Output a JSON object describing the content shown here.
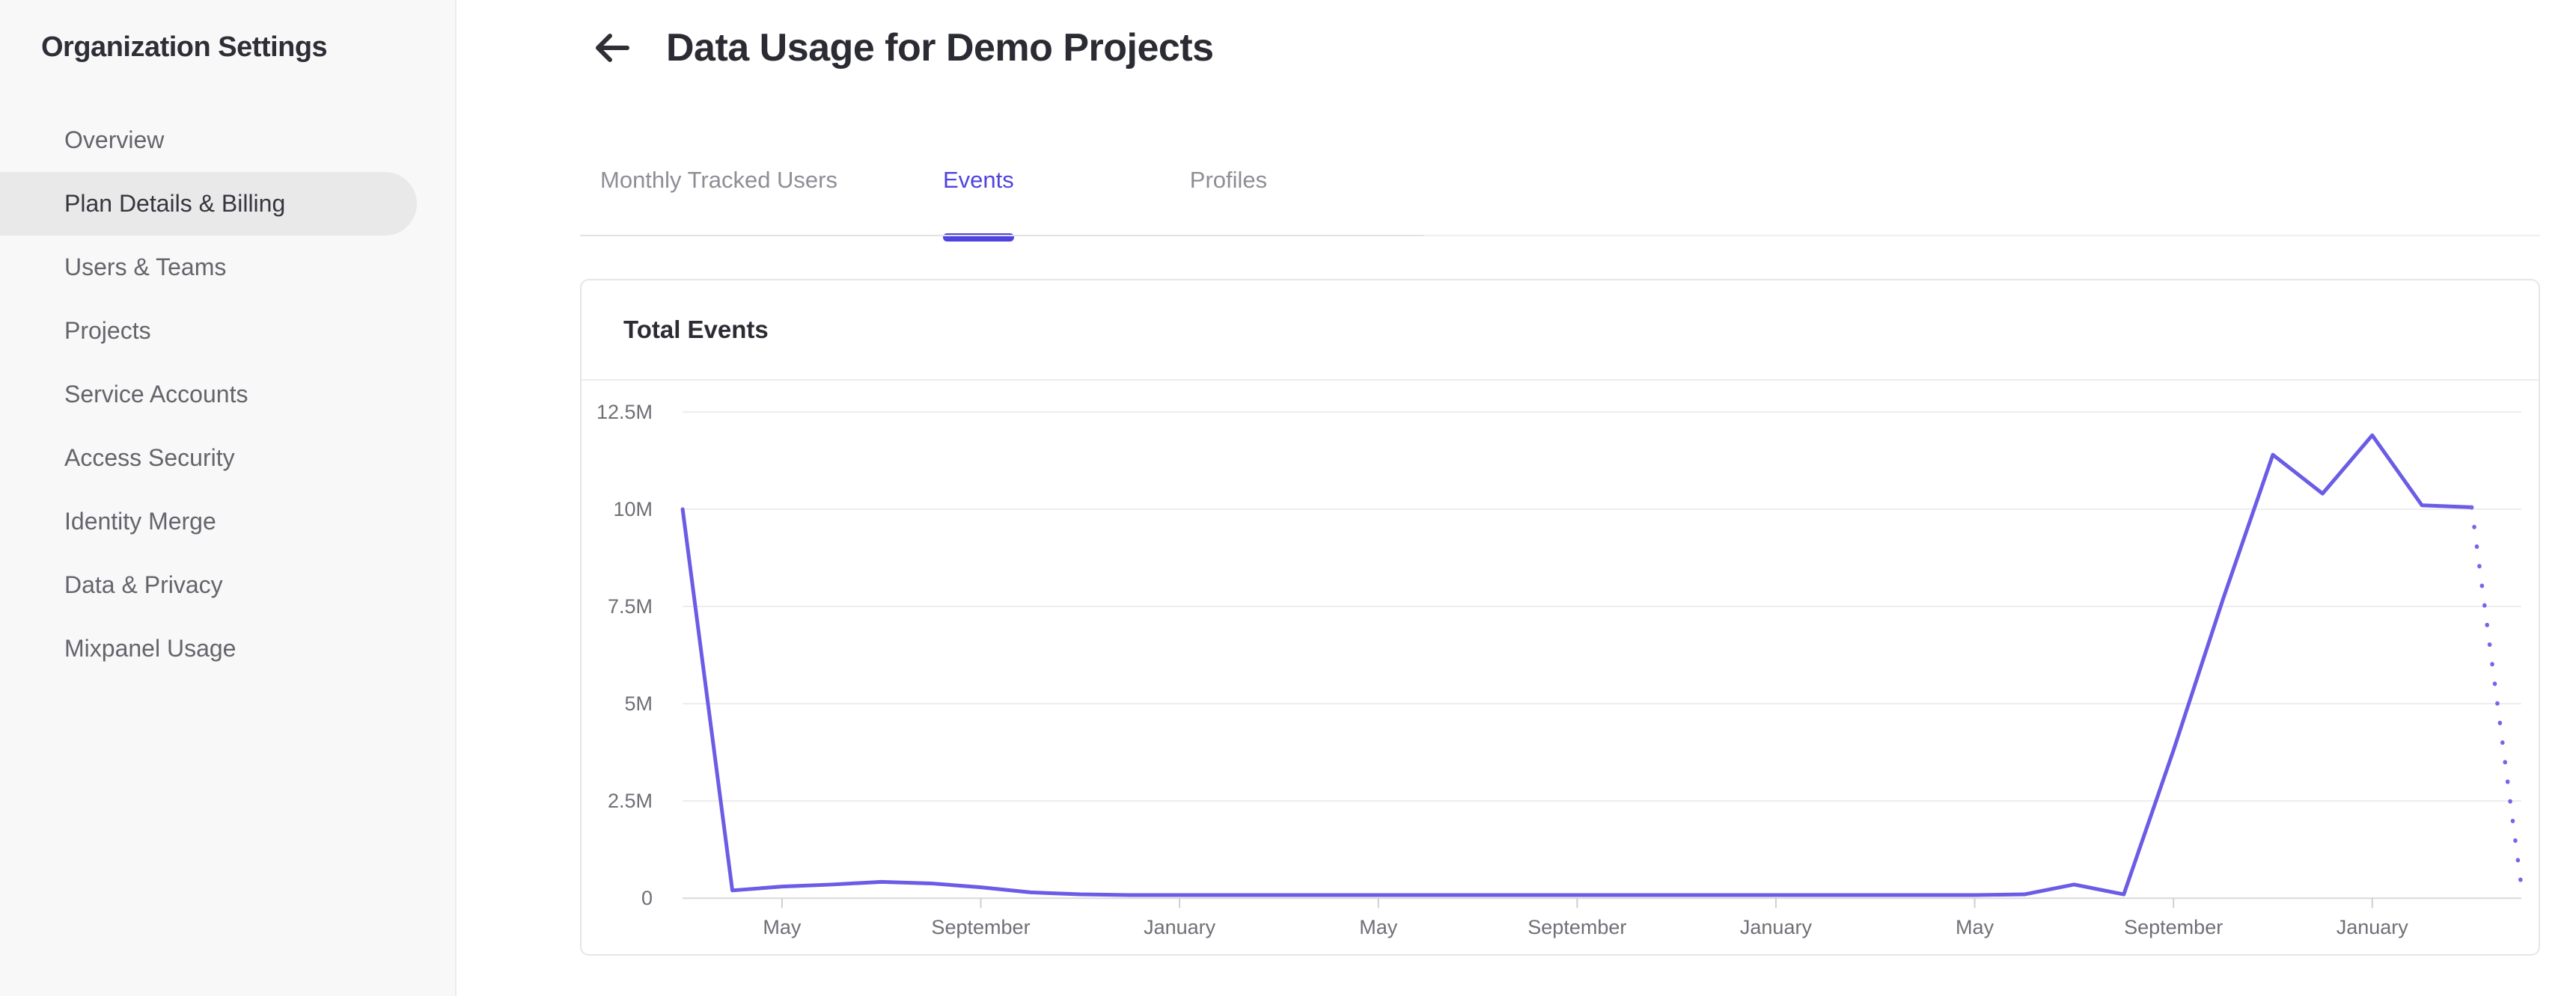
{
  "sidebar": {
    "title": "Organization Settings",
    "items": [
      {
        "label": "Overview",
        "active": false
      },
      {
        "label": "Plan Details & Billing",
        "active": true
      },
      {
        "label": "Users & Teams",
        "active": false
      },
      {
        "label": "Projects",
        "active": false
      },
      {
        "label": "Service Accounts",
        "active": false
      },
      {
        "label": "Access Security",
        "active": false
      },
      {
        "label": "Identity Merge",
        "active": false
      },
      {
        "label": "Data & Privacy",
        "active": false
      },
      {
        "label": "Mixpanel Usage",
        "active": false
      }
    ]
  },
  "header": {
    "title": "Data Usage for Demo Projects",
    "back_icon": "left-arrow"
  },
  "tabs": {
    "items": [
      {
        "label": "Monthly Tracked Users",
        "active": false
      },
      {
        "label": "Events",
        "active": true
      },
      {
        "label": "Profiles",
        "active": false
      }
    ],
    "active_color": "#4f44e0"
  },
  "card": {
    "title": "Total Events"
  },
  "chart_data": {
    "type": "line",
    "title": "Total Events",
    "unit": "events per month",
    "ylabel": "",
    "xlabel": "",
    "ylim_millions": [
      0,
      12.5
    ],
    "grid": true,
    "legend": "none",
    "line_color": "#6b5ce6",
    "dotted_color": "#7566e9",
    "y_ticks": [
      "12.5M",
      "10M",
      "7.5M",
      "5M",
      "2.5M",
      "0"
    ],
    "y_tick_values_millions": [
      12.5,
      10,
      7.5,
      5,
      2.5,
      0
    ],
    "months": [
      "Mar",
      "Apr",
      "May",
      "Jun",
      "Jul",
      "Aug",
      "Sep",
      "Oct",
      "Nov",
      "Dec",
      "Jan",
      "Feb",
      "Mar",
      "Apr",
      "May",
      "Jun",
      "Jul",
      "Aug",
      "Sep",
      "Oct",
      "Nov",
      "Dec",
      "Jan",
      "Feb",
      "Mar",
      "Apr",
      "May",
      "Jun",
      "Jul",
      "Aug",
      "Sep",
      "Oct",
      "Nov",
      "Dec",
      "Jan",
      "Feb",
      "Mar",
      "Apr"
    ],
    "values_millions": [
      10.0,
      0.2,
      0.3,
      0.35,
      0.42,
      0.38,
      0.28,
      0.15,
      0.1,
      0.08,
      0.08,
      0.08,
      0.08,
      0.08,
      0.08,
      0.08,
      0.08,
      0.08,
      0.08,
      0.08,
      0.08,
      0.08,
      0.08,
      0.08,
      0.08,
      0.08,
      0.08,
      0.1,
      0.35,
      0.1,
      3.8,
      7.7,
      11.4,
      10.4,
      11.9,
      10.1,
      10.05,
      0.3
    ],
    "x_tick_indices": [
      2,
      6,
      10,
      14,
      18,
      22,
      26,
      30,
      34
    ],
    "x_tick_labels": [
      "May",
      "September",
      "January",
      "May",
      "September",
      "January",
      "May",
      "September",
      "January"
    ],
    "last_segment_dotted": true
  }
}
